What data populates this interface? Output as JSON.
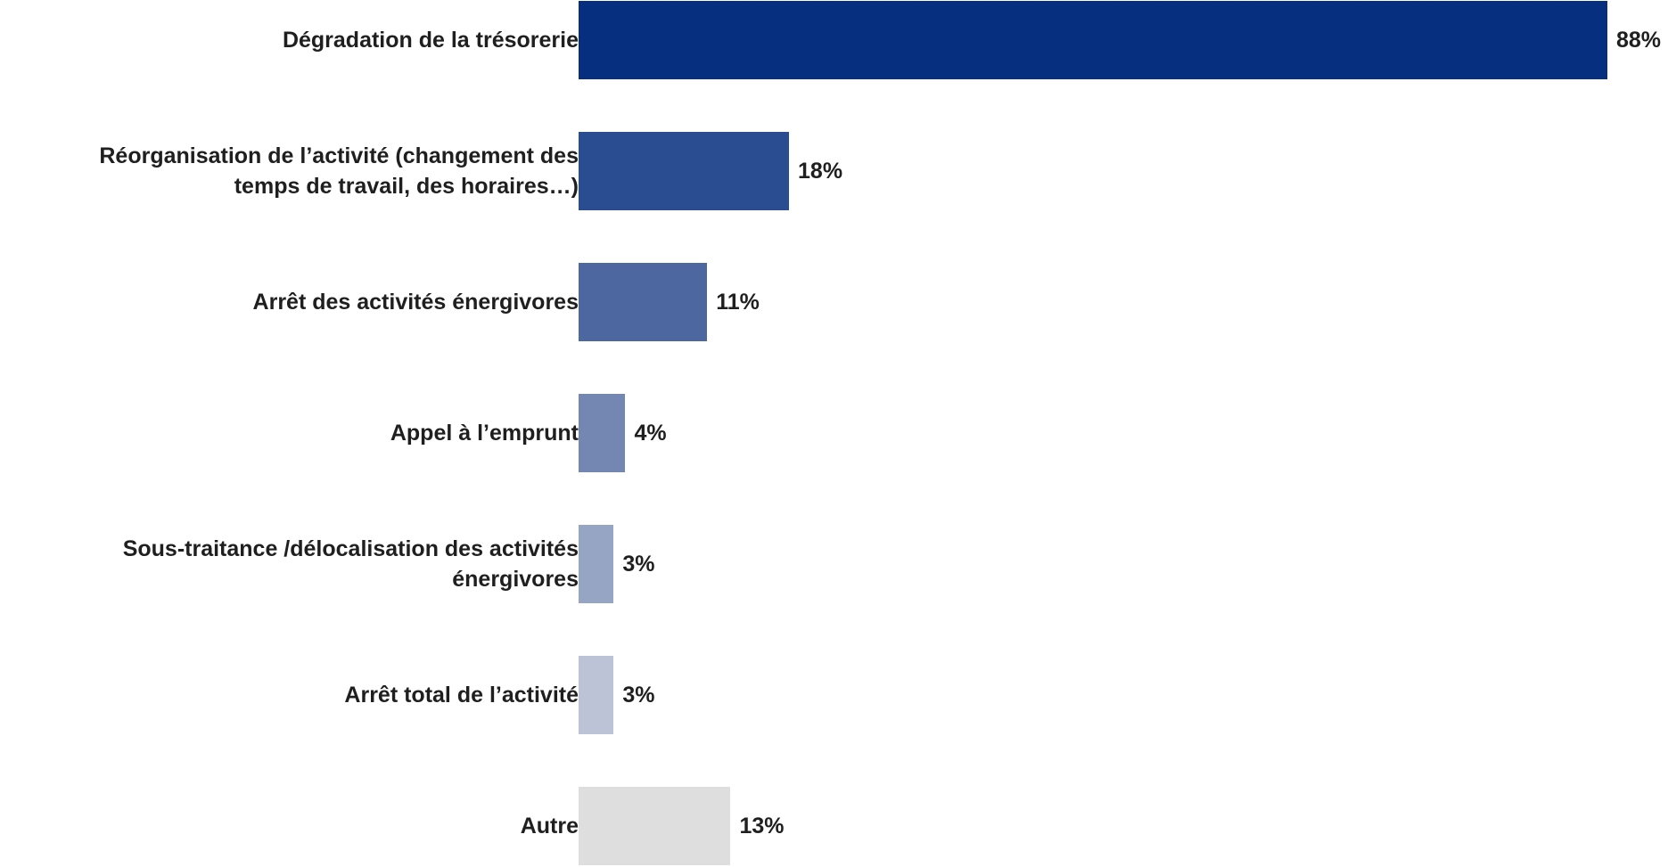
{
  "chart_data": {
    "type": "bar",
    "orientation": "horizontal",
    "categories": [
      "Dégradation de la trésorerie",
      "Réorganisation de l’activité (changement des temps de travail, des horaires…)",
      "Arrêt des activités énergivores",
      "Appel à l’emprunt",
      "Sous-traitance /délocalisation des activités énergivores",
      "Arrêt total de l’activité",
      "Autre"
    ],
    "category_lines": [
      [
        "Dégradation de la trésorerie"
      ],
      [
        "Réorganisation de l’activité (changement des",
        "temps de travail, des horaires…)"
      ],
      [
        "Arrêt des activités énergivores"
      ],
      [
        "Appel à l’emprunt"
      ],
      [
        "Sous-traitance /délocalisation des activités",
        "énergivores"
      ],
      [
        "Arrêt total de l’activité"
      ],
      [
        "Autre"
      ]
    ],
    "values": [
      88,
      18,
      11,
      4,
      3,
      3,
      13
    ],
    "value_labels": [
      "88%",
      "18%",
      "11%",
      "4%",
      "3%",
      "3%",
      "13%"
    ],
    "unit": "%",
    "xlim": [
      0,
      88
    ],
    "grid": false,
    "legend": "none",
    "colors": [
      "#06307f",
      "#2a4d91",
      "#4d68a0",
      "#7486b2",
      "#97a5c5",
      "#bcc3d7",
      "#dedede"
    ],
    "title": "",
    "xlabel": "",
    "ylabel": ""
  }
}
